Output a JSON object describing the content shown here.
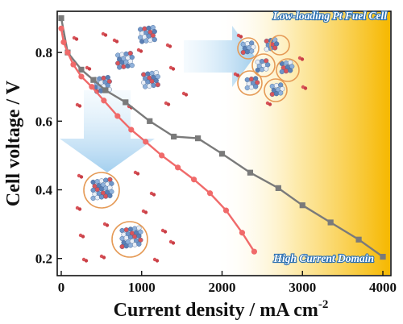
{
  "chart_data": {
    "type": "line",
    "xlabel": "Current density / mA cm",
    "xlabel_sup": "-2",
    "ylabel": "Cell voltage / V",
    "xlim": [
      -50,
      4100
    ],
    "ylim": [
      0.15,
      0.92
    ],
    "xticks": [
      0,
      1000,
      2000,
      3000,
      4000
    ],
    "yticks": [
      0.2,
      0.4,
      0.6,
      0.8
    ],
    "grid": false,
    "legend": "none",
    "series": [
      {
        "color": "#7a7a7a",
        "marker": "square",
        "x": [
          0,
          80,
          250,
          400,
          550,
          800,
          1100,
          1400,
          1700,
          2000,
          2350,
          2700,
          3000,
          3350,
          3700,
          4000
        ],
        "y": [
          0.9,
          0.8,
          0.75,
          0.72,
          0.69,
          0.655,
          0.6,
          0.555,
          0.55,
          0.505,
          0.45,
          0.405,
          0.355,
          0.305,
          0.255,
          0.205
        ]
      },
      {
        "color": "#f06a6a",
        "marker": "circle",
        "x": [
          0,
          30,
          80,
          150,
          250,
          380,
          530,
          700,
          870,
          1050,
          1250,
          1450,
          1650,
          1850,
          2050,
          2250,
          2400
        ],
        "y": [
          0.87,
          0.83,
          0.8,
          0.765,
          0.73,
          0.7,
          0.66,
          0.615,
          0.575,
          0.54,
          0.5,
          0.465,
          0.43,
          0.39,
          0.34,
          0.275,
          0.22
        ]
      }
    ]
  },
  "annotations": {
    "top_banner": "Low-loading Pt Fuel Cell",
    "bottom_banner": "High Current Domain"
  },
  "colors": {
    "gradient_start": "#ffffff",
    "gradient_end": "#f6b800",
    "banner_stroke": "#2a6fb0",
    "arrow": "#a9d2f0",
    "circle": "#e59a56",
    "cluster_blue": "#6f95c8",
    "cluster_red": "#d9545a"
  }
}
